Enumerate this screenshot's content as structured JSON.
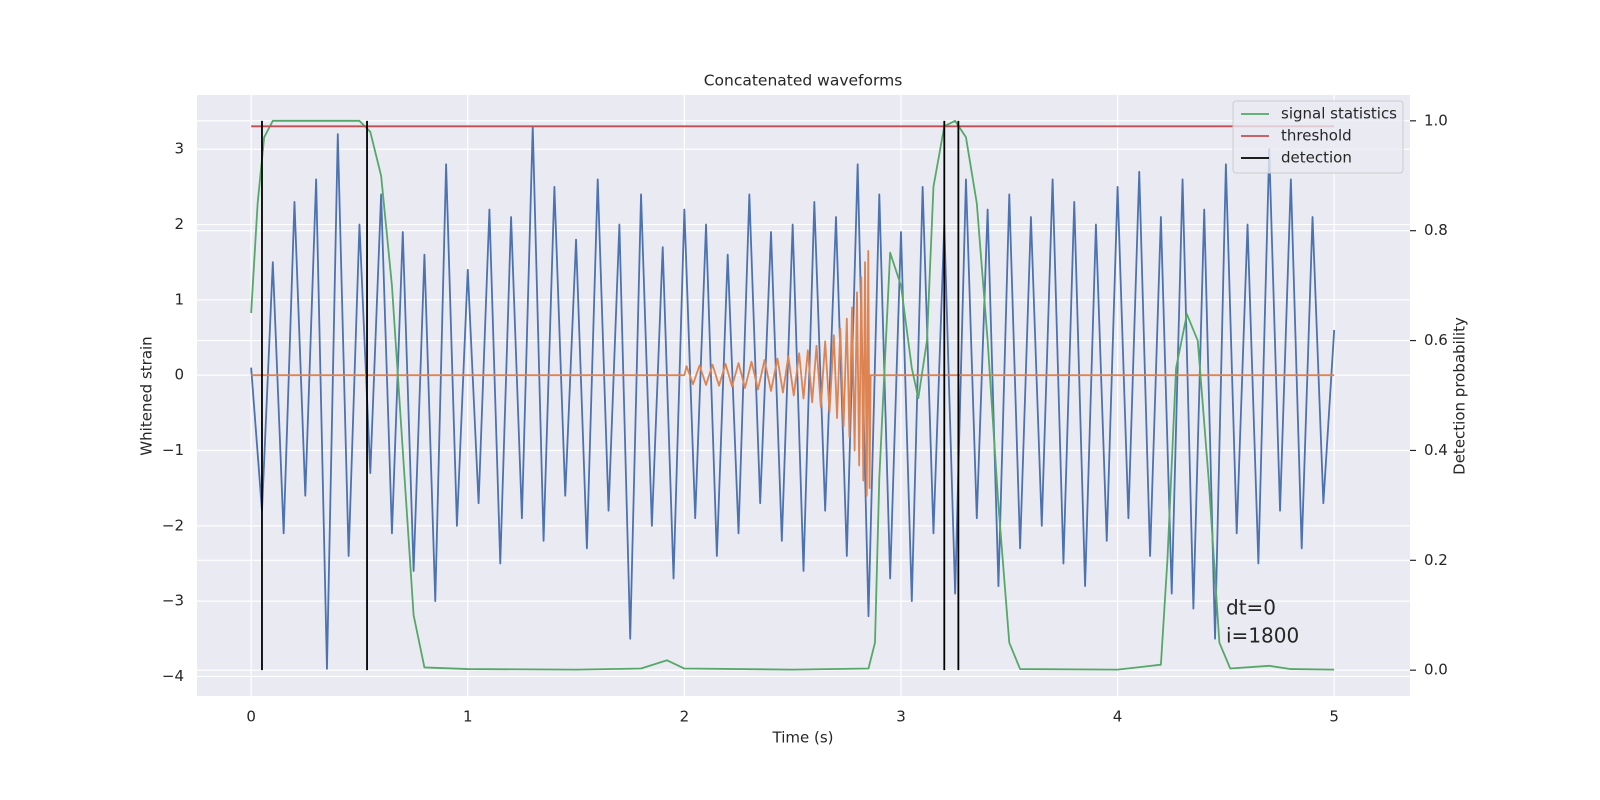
{
  "chart_data": {
    "type": "line",
    "title": "Concatenated waveforms",
    "xlabel": "Time (s)",
    "ylabel": "Whitened strain",
    "y2label": "Detection probability",
    "annotations": [
      "dt=0",
      "i=1800"
    ],
    "xlim": [
      -0.25,
      5.35
    ],
    "ylim": [
      -4.26,
      3.72
    ],
    "y2lim": [
      -0.047,
      1.047
    ],
    "xticks": [
      0,
      1,
      2,
      3,
      4,
      5
    ],
    "yticks": [
      {
        "value": -4,
        "label": "−4"
      },
      {
        "value": -3,
        "label": "−3"
      },
      {
        "value": -2,
        "label": "−2"
      },
      {
        "value": -1,
        "label": "−1"
      },
      0,
      1,
      2,
      3
    ],
    "y2ticks": [
      {
        "value": 0,
        "label": "0.0"
      },
      {
        "value": 0.2,
        "label": "0.2"
      },
      {
        "value": 0.4,
        "label": "0.4"
      },
      {
        "value": 0.6,
        "label": "0.6"
      },
      {
        "value": 0.8,
        "label": "0.8"
      },
      {
        "value": 1,
        "label": "1.0"
      }
    ],
    "grid": true,
    "legend": "upper right",
    "series": [
      {
        "color": "#4c72b0",
        "x": [
          0,
          0.05,
          0.1,
          0.15,
          0.2,
          0.25,
          0.3,
          0.35,
          0.4,
          0.45,
          0.5,
          0.55,
          0.6,
          0.65,
          0.7,
          0.75,
          0.8,
          0.85,
          0.9,
          0.95,
          1,
          1.05,
          1.1,
          1.15,
          1.2,
          1.25,
          1.3,
          1.35,
          1.4,
          1.45,
          1.5,
          1.55,
          1.6,
          1.65,
          1.7,
          1.75,
          1.8,
          1.85,
          1.9,
          1.95,
          2,
          2.05,
          2.1,
          2.15,
          2.2,
          2.25,
          2.3,
          2.35,
          2.4,
          2.45,
          2.5,
          2.55,
          2.6,
          2.65,
          2.7,
          2.75,
          2.8,
          2.85,
          2.9,
          2.95,
          3,
          3.05,
          3.1,
          3.15,
          3.2,
          3.25,
          3.3,
          3.35,
          3.4,
          3.45,
          3.5,
          3.55,
          3.6,
          3.65,
          3.7,
          3.75,
          3.8,
          3.85,
          3.9,
          3.95,
          4,
          4.05,
          4.1,
          4.15,
          4.2,
          4.25,
          4.3,
          4.35,
          4.4,
          4.45,
          4.5,
          4.55,
          4.6,
          4.65,
          4.7,
          4.75,
          4.8,
          4.85,
          4.9,
          4.95,
          5
        ],
        "values": [
          0.1,
          -1.8,
          1.5,
          -2.1,
          2.3,
          -1.6,
          2.6,
          -3.9,
          3.2,
          -2.4,
          2.0,
          -1.3,
          2.4,
          -2.1,
          1.9,
          -2.6,
          1.6,
          -3.0,
          2.8,
          -2.0,
          1.4,
          -1.7,
          2.2,
          -2.5,
          2.1,
          -1.9,
          3.3,
          -2.2,
          2.5,
          -1.6,
          1.8,
          -2.3,
          2.6,
          -1.8,
          2.0,
          -3.5,
          2.4,
          -2.0,
          1.7,
          -2.7,
          2.2,
          -1.9,
          2.0,
          -2.4,
          1.6,
          -2.1,
          2.4,
          -1.7,
          1.9,
          -2.2,
          2.0,
          -2.6,
          2.3,
          -1.8,
          2.1,
          -2.4,
          2.8,
          -3.2,
          2.4,
          -2.7,
          1.9,
          -3.0,
          2.5,
          -2.1,
          2.0,
          -2.9,
          2.6,
          -1.9,
          2.2,
          -2.8,
          2.4,
          -2.3,
          2.1,
          -2.0,
          2.6,
          -2.5,
          2.3,
          -2.8,
          2.0,
          -2.2,
          2.5,
          -1.9,
          2.7,
          -2.4,
          2.1,
          -2.9,
          2.6,
          -3.1,
          2.2,
          -3.5,
          2.8,
          -2.1,
          2.0,
          -2.5,
          3.0,
          -1.8,
          2.6,
          -2.3,
          2.1,
          -1.7,
          0.6
        ]
      },
      {
        "color": "#dd8452",
        "x": [
          0,
          2.0,
          2.01,
          2.04,
          2.07,
          2.1,
          2.13,
          2.16,
          2.19,
          2.22,
          2.25,
          2.28,
          2.31,
          2.34,
          2.37,
          2.4,
          2.43,
          2.455,
          2.48,
          2.505,
          2.53,
          2.55,
          2.57,
          2.59,
          2.61,
          2.63,
          2.65,
          2.67,
          2.69,
          2.705,
          2.72,
          2.735,
          2.75,
          2.762,
          2.774,
          2.786,
          2.797,
          2.807,
          2.817,
          2.826,
          2.834,
          2.842,
          2.849,
          2.855,
          2.86,
          5
        ],
        "values": [
          0,
          0,
          0.12,
          -0.12,
          0.13,
          -0.13,
          0.14,
          -0.14,
          0.15,
          -0.15,
          0.16,
          -0.17,
          0.18,
          -0.19,
          0.2,
          -0.21,
          0.22,
          -0.23,
          0.25,
          -0.27,
          0.29,
          -0.31,
          0.33,
          -0.36,
          0.39,
          -0.42,
          0.45,
          -0.49,
          0.53,
          -0.57,
          0.62,
          -0.68,
          0.75,
          -0.82,
          0.9,
          -1.0,
          1.1,
          -1.2,
          1.3,
          -1.4,
          1.5,
          -1.6,
          1.65,
          -1.5,
          0,
          0
        ]
      },
      {
        "name": "signal statistics",
        "color": "#55a868",
        "axis": "y2",
        "x": [
          0,
          0.03,
          0.06,
          0.1,
          0.5,
          0.55,
          0.6,
          0.65,
          0.7,
          0.75,
          0.8,
          1.0,
          1.5,
          1.8,
          1.92,
          2.0,
          2.5,
          2.85,
          2.88,
          2.9,
          2.95,
          3.0,
          3.05,
          3.08,
          3.12,
          3.15,
          3.2,
          3.25,
          3.3,
          3.35,
          3.4,
          3.45,
          3.5,
          3.55,
          4.0,
          4.2,
          4.23,
          4.27,
          4.32,
          4.37,
          4.42,
          4.47,
          4.52,
          4.7,
          4.8,
          5.0
        ],
        "values": [
          0.65,
          0.85,
          0.97,
          1.0,
          1.0,
          0.98,
          0.9,
          0.7,
          0.4,
          0.1,
          0.005,
          0.002,
          0.001,
          0.003,
          0.018,
          0.003,
          0.001,
          0.003,
          0.05,
          0.35,
          0.76,
          0.7,
          0.55,
          0.495,
          0.6,
          0.88,
          0.99,
          1.0,
          0.97,
          0.85,
          0.6,
          0.3,
          0.05,
          0.002,
          0.001,
          0.01,
          0.2,
          0.55,
          0.648,
          0.6,
          0.35,
          0.05,
          0.003,
          0.008,
          0.002,
          0.001
        ]
      },
      {
        "name": "threshold",
        "color": "#c44e52",
        "axis": "y2",
        "x": [
          0,
          5
        ],
        "values": [
          0.99,
          0.99
        ]
      }
    ],
    "detections": {
      "name": "detection",
      "color": "#000000",
      "x": [
        0.05,
        0.535,
        3.2,
        3.265
      ],
      "ymin": 0,
      "ymax": 1
    }
  }
}
